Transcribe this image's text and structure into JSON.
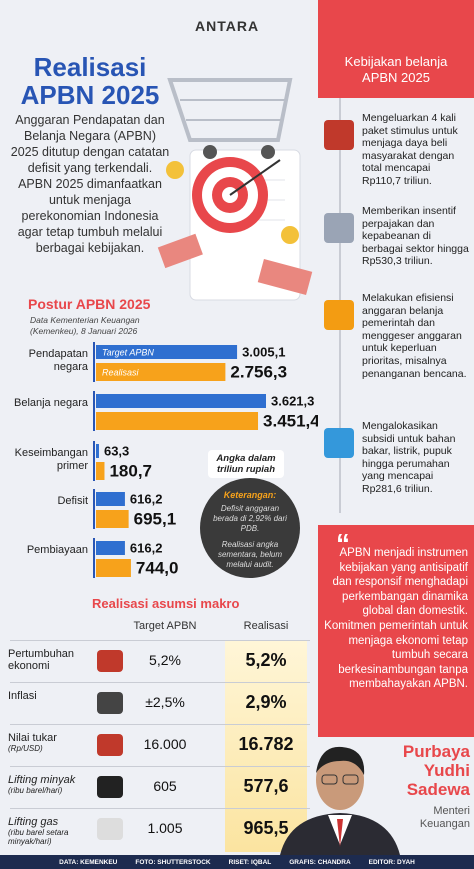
{
  "header": {
    "logo": "ANTARA",
    "title_line1": "Realisasi",
    "title_line2": "APBN 2025",
    "intro": "Anggaran Pendapatan dan Belanja Negara (APBN) 2025 ditutup dengan catatan defisit yang terkendali. APBN 2025 dimanfaatkan untuk menjaga perekonomian Indonesia agar tetap tumbuh melalui berbagai kebijakan."
  },
  "policy": {
    "title": "Kebijakan belanja APBN 2025",
    "items": [
      "Mengeluarkan 4 kali paket stimulus untuk menjaga daya beli masyarakat dengan total mencapai Rp110,7 triliun.",
      "Memberikan insentif perpajakan dan kepabeanan di berbagai sektor hingga Rp530,3 triliun.",
      "Melakukan efisiensi anggaran belanja pemerintah dan menggeser anggaran untuk keperluan prioritas, misalnya penanganan bencana.",
      "Mengalokasikan subsidi untuk bahan bakar, listrik, pupuk hingga perumahan yang mencapai Rp281,6 triliun."
    ]
  },
  "chart_data": {
    "type": "bar",
    "orientation": "horizontal",
    "title": "Postur APBN 2025",
    "subtitle": "Data Kementerian Keuangan (Kemenkeu), 8 Januari 2026",
    "unit_note": "Angka dalam triliun rupiah",
    "categories": [
      "Pendapatan negara",
      "Belanja negara",
      "Keseimbangan primer",
      "Defisit",
      "Pembiayaan"
    ],
    "series": [
      {
        "name": "Target APBN",
        "color": "#2f6fd0",
        "values": [
          3005.1,
          3621.3,
          63.3,
          616.2,
          616.2
        ],
        "value_labels": [
          "3.005,1",
          "3.621,3",
          "63,3",
          "616,2",
          "616,2"
        ]
      },
      {
        "name": "Realisasi",
        "color": "#f7a21b",
        "values": [
          2756.3,
          3451.4,
          180.7,
          695.1,
          744.0
        ],
        "value_labels": [
          "2.756,3",
          "3.451,4",
          "180,7",
          "695,1",
          "744,0"
        ]
      }
    ]
  },
  "note": {
    "title": "Keterangan:",
    "lines": [
      "Defisit anggaran berada di 2,92% dari PDB.",
      "Realisasi angka sementara, belum melalui audit."
    ]
  },
  "table": {
    "title": "Realisasi asumsi makro",
    "columns": [
      "Target APBN",
      "Realisasi"
    ],
    "rows": [
      {
        "label": "Pertumbuhan ekonomi",
        "target": "5,2%",
        "actual": "5,2%"
      },
      {
        "label": "Inflasi",
        "target": "±2,5%",
        "actual": "2,9%"
      },
      {
        "label": "Nilai tukar",
        "unit": "(Rp/USD)",
        "target": "16.000",
        "actual": "16.782"
      },
      {
        "label": "Lifting minyak",
        "unit": "(ribu barel/hari)",
        "target": "605",
        "actual": "577,6"
      },
      {
        "label": "Lifting gas",
        "unit": "(ribu barel setara minyak/hari)",
        "target": "1.005",
        "actual": "965,5"
      }
    ]
  },
  "quote": {
    "text": "APBN menjadi instrumen kebijakan yang antisipatif dan responsif menghadapi perkembangan dinamika global dan domestik. Komitmen pemerintah untuk menjaga ekonomi tetap tumbuh secara berkesinambungan tanpa membahayakan APBN.",
    "name": "Purbaya Yudhi Sadewa",
    "role": "Menteri Keuangan"
  },
  "footer": [
    "DATA: KEMENKEU",
    "FOTO: SHUTTERSTOCK",
    "RISET: IQBAL",
    "GRAFIS: CHANDRA",
    "EDITOR: DYAH"
  ]
}
